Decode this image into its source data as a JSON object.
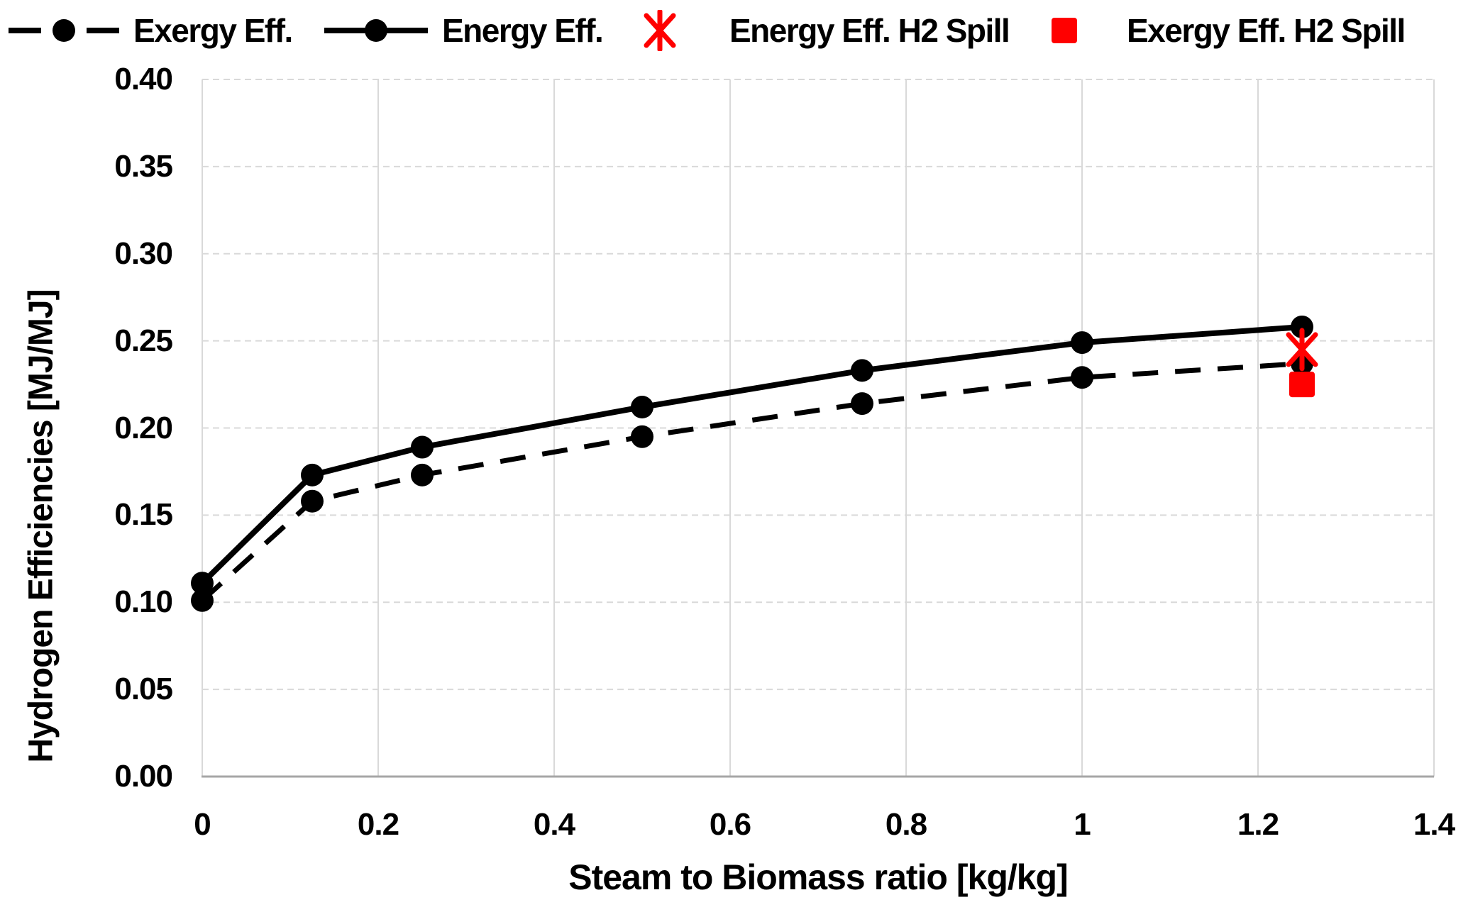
{
  "chart_data": {
    "type": "line",
    "title": "",
    "xlabel": "Steam to Biomass ratio [kg/kg]",
    "ylabel": "Hydrogen Efficiencies [MJ/MJ]",
    "xlim": [
      0,
      1.4
    ],
    "ylim": [
      0.0,
      0.4
    ],
    "xticks": [
      0,
      0.2,
      0.4,
      0.6,
      0.8,
      1,
      1.2,
      1.4
    ],
    "xtick_labels": [
      "0",
      "0.2",
      "0.4",
      "0.6",
      "0.8",
      "1",
      "1.2",
      "1.4"
    ],
    "yticks": [
      0.0,
      0.05,
      0.1,
      0.15,
      0.2,
      0.25,
      0.3,
      0.35,
      0.4
    ],
    "ytick_labels": [
      "0.00",
      "0.05",
      "0.10",
      "0.15",
      "0.20",
      "0.25",
      "0.30",
      "0.35",
      "0.40"
    ],
    "grid": true,
    "legend_position": "top",
    "colors": {
      "grid": "#d9d9d9",
      "axis": "#a6a6a6",
      "black_series": "#000000",
      "red_series": "#ff0000"
    },
    "series": [
      {
        "name": "Exergy Eff.",
        "type": "line",
        "style": "dashed",
        "color": "#000000",
        "marker": "circle",
        "x": [
          0,
          0.125,
          0.25,
          0.5,
          0.75,
          1,
          1.25
        ],
        "y": [
          0.101,
          0.158,
          0.173,
          0.195,
          0.214,
          0.229,
          0.237
        ]
      },
      {
        "name": "Energy Eff.",
        "type": "line",
        "style": "solid",
        "color": "#000000",
        "marker": "circle",
        "x": [
          0,
          0.125,
          0.25,
          0.5,
          0.75,
          1,
          1.25
        ],
        "y": [
          0.111,
          0.173,
          0.189,
          0.212,
          0.233,
          0.249,
          0.258
        ]
      },
      {
        "name": "Energy Eff. H2 Spill",
        "type": "scatter",
        "style": "none",
        "color": "#ff0000",
        "marker": "asterisk",
        "x": [
          1.25
        ],
        "y": [
          0.245
        ]
      },
      {
        "name": "Exergy Eff. H2 Spill",
        "type": "scatter",
        "style": "none",
        "color": "#ff0000",
        "marker": "square",
        "x": [
          1.25
        ],
        "y": [
          0.225
        ]
      }
    ]
  }
}
